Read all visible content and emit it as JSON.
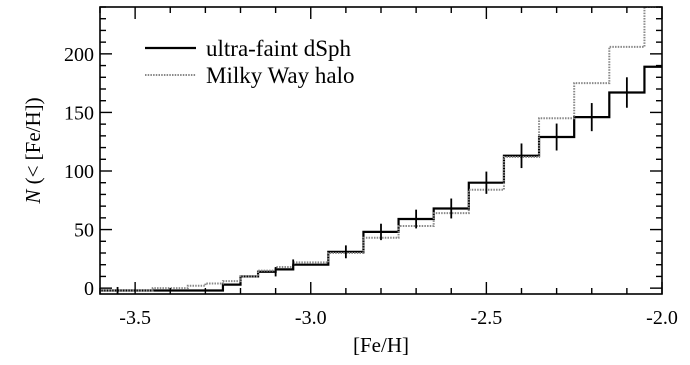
{
  "chart_data": {
    "type": "step",
    "xlabel": "[Fe/H]",
    "ylabel": "N (< [Fe/H])",
    "xlim": [
      -3.6,
      -2.0
    ],
    "ylim": [
      -5,
      240
    ],
    "xticks": [
      -3.5,
      -3.0,
      -2.5,
      -2.0
    ],
    "xtick_labels": [
      "-3.5",
      "-3.0",
      "-2.5",
      "-2.0"
    ],
    "yticks": [
      0,
      50,
      100,
      150,
      200
    ],
    "ytick_labels": [
      "0",
      "50",
      "100",
      "150",
      "200"
    ],
    "legend_position": "top-left",
    "series": [
      {
        "name": "ultra-faint dSph",
        "style": "solid",
        "color": "#000000",
        "x_edges": [
          -3.6,
          -3.3,
          -3.25,
          -3.2,
          -3.15,
          -3.1,
          -3.05,
          -3.0,
          -2.95,
          -2.9,
          -2.85,
          -2.8,
          -2.75,
          -2.7,
          -2.65,
          -2.6,
          -2.55,
          -2.5,
          -2.45,
          -2.4,
          -2.35,
          -2.3,
          -2.25,
          -2.2,
          -2.15,
          -2.1,
          -2.05,
          -2.0
        ],
        "values": [
          -2,
          -2,
          3,
          10,
          14,
          16,
          20,
          20,
          31,
          31,
          48,
          48,
          59,
          59,
          68,
          68,
          90,
          90,
          113,
          113,
          129,
          129,
          146,
          146,
          167,
          167,
          189
        ],
        "error_x": [
          -3.55,
          -3.1,
          -3.05,
          -2.9,
          -2.8,
          -2.7,
          -2.6,
          -2.5,
          -2.4,
          -2.3,
          -2.2,
          -2.1
        ],
        "error_y": [
          -2,
          14,
          20,
          31,
          48,
          59,
          68,
          90,
          113,
          129,
          146,
          167
        ],
        "error_halfwidth": [
          3,
          4,
          4.5,
          5.5,
          7,
          8,
          8.5,
          9.5,
          10.5,
          11.5,
          12,
          13
        ]
      },
      {
        "name": "Milky Way halo",
        "style": "dotted",
        "color": "#888888",
        "x_edges": [
          -3.6,
          -3.45,
          -3.35,
          -3.3,
          -3.25,
          -3.2,
          -3.15,
          -3.1,
          -3.05,
          -3.0,
          -2.95,
          -2.9,
          -2.85,
          -2.8,
          -2.75,
          -2.7,
          -2.65,
          -2.6,
          -2.55,
          -2.5,
          -2.45,
          -2.4,
          -2.35,
          -2.3,
          -2.25,
          -2.2,
          -2.15,
          -2.1,
          -2.05,
          -2.0
        ],
        "values": [
          -2,
          0,
          2,
          4,
          6,
          10,
          15,
          18,
          22,
          22,
          30,
          30,
          43,
          43,
          53,
          53,
          64,
          64,
          84,
          84,
          112,
          112,
          145,
          145,
          175,
          175,
          206,
          206,
          240
        ]
      }
    ]
  }
}
